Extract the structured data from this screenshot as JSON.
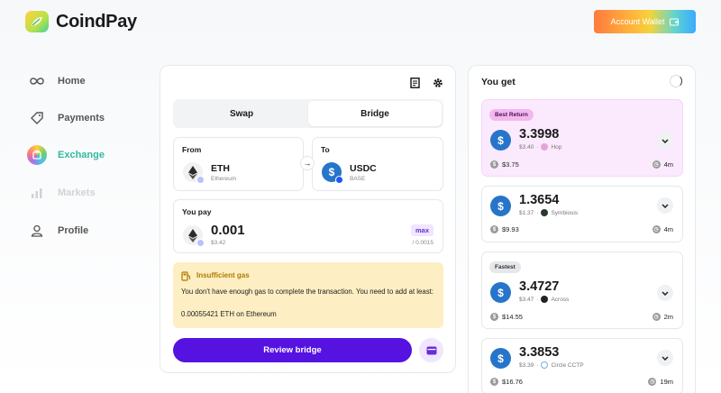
{
  "brand": {
    "name": "CoindPay"
  },
  "header": {
    "account_button": "Account Wallet"
  },
  "sidebar": {
    "items": [
      {
        "label": "Home",
        "icon": "infinity-icon"
      },
      {
        "label": "Payments",
        "icon": "tag-icon"
      },
      {
        "label": "Exchange",
        "icon": "exchange-icon",
        "active": true
      },
      {
        "label": "Markets",
        "icon": "bar-chart-icon",
        "disabled": true
      },
      {
        "label": "Profile",
        "icon": "user-icon"
      }
    ]
  },
  "bridge": {
    "tabs": [
      "Swap",
      "Bridge"
    ],
    "active_tab": "Bridge",
    "from": {
      "label": "From",
      "token": "ETH",
      "network": "Ethereum"
    },
    "to": {
      "label": "To",
      "token": "USDC",
      "network": "BASE"
    },
    "pay": {
      "label": "You pay",
      "amount": "0.001",
      "usd": "$3.42",
      "max_label": "max",
      "balance": "/ 0.0015"
    },
    "warning": {
      "title": "Insufficient gas",
      "message": "You don't have enough gas to complete the transaction. You need to add at least:",
      "amount_line": "0.00055421 ETH on Ethereum"
    },
    "review_button": "Review bridge"
  },
  "quotes_panel": {
    "title": "You get",
    "quotes": [
      {
        "badge": "Best Return",
        "amount": "3.3998",
        "usd": "$3.40",
        "provider": "Hop",
        "fee": "$3.75",
        "time": "4m"
      },
      {
        "badge": "",
        "amount": "1.3654",
        "usd": "$1.37",
        "provider": "Symbiosis",
        "fee": "$9.93",
        "time": "4m"
      },
      {
        "badge": "Fastest",
        "amount": "3.4727",
        "usd": "$3.47",
        "provider": "Across",
        "fee": "$14.55",
        "time": "2m"
      },
      {
        "badge": "",
        "amount": "3.3853",
        "usd": "$3.39",
        "provider": "Circle CCTP",
        "fee": "$16.76",
        "time": "19m"
      }
    ]
  },
  "colors": {
    "primary": "#5512e0",
    "accent_active": "#35b8a0",
    "warning_bg": "#fdefc3",
    "best_bg": "#fbeafd"
  }
}
